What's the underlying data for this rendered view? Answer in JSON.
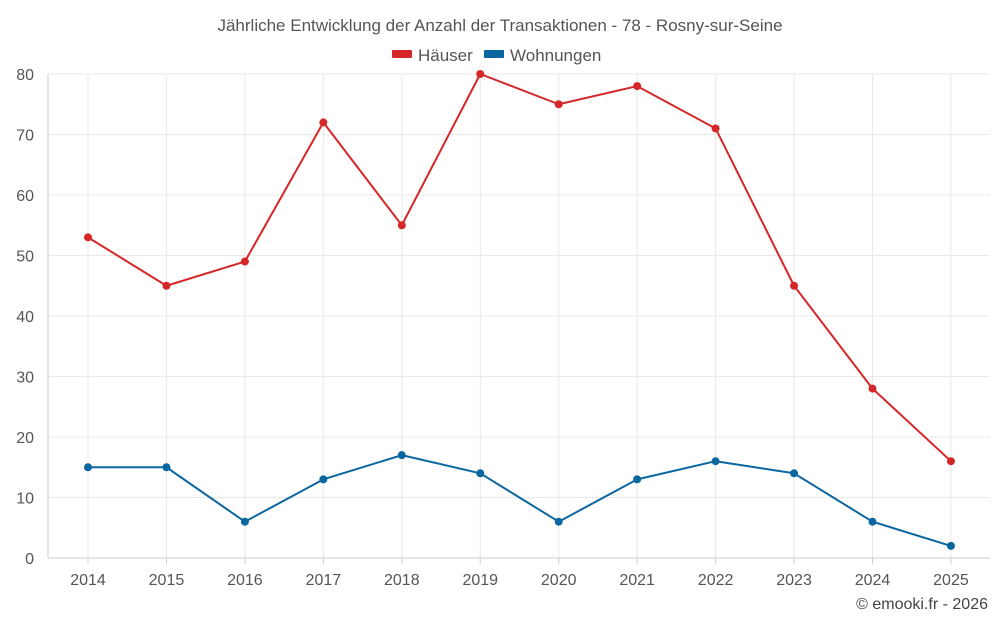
{
  "chart_data": {
    "type": "line",
    "title": "Jährliche Entwicklung der Anzahl der Transaktionen - 78 - Rosny-sur-Seine",
    "categories": [
      "2014",
      "2015",
      "2016",
      "2017",
      "2018",
      "2019",
      "2020",
      "2021",
      "2022",
      "2023",
      "2024",
      "2025"
    ],
    "series": [
      {
        "name": "Häuser",
        "color": "#d62728",
        "values": [
          53,
          45,
          49,
          72,
          55,
          80,
          75,
          78,
          71,
          45,
          28,
          16
        ]
      },
      {
        "name": "Wohnungen",
        "color": "#0a66a0",
        "values": [
          15,
          15,
          6,
          13,
          17,
          14,
          6,
          13,
          16,
          14,
          6,
          2
        ]
      }
    ],
    "ylim": [
      0,
      80
    ],
    "yticks": [
      0,
      10,
      20,
      30,
      40,
      50,
      60,
      70,
      80
    ],
    "xlabel": "",
    "ylabel": "",
    "grid": true,
    "legend_position": "top-center"
  },
  "footer": {
    "credit": "© emooki.fr - 2026"
  }
}
